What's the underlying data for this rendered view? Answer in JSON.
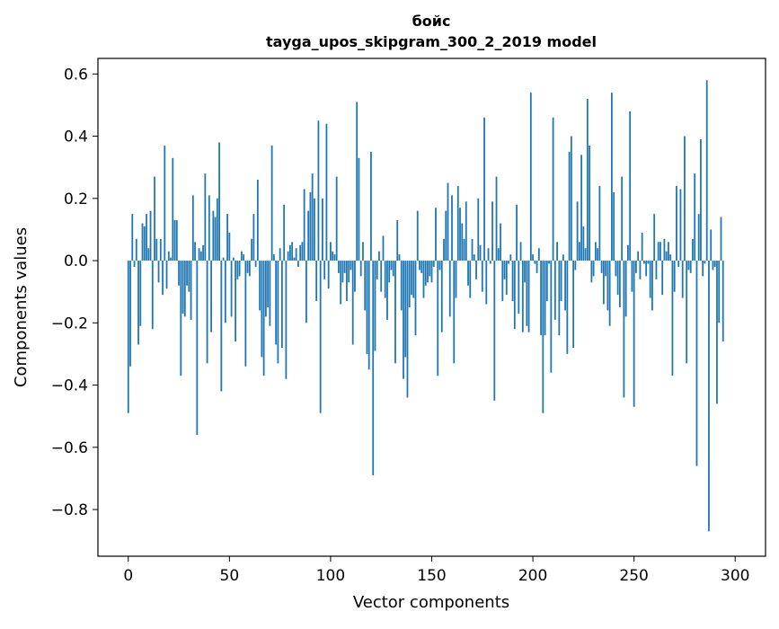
{
  "chart_data": {
    "type": "bar",
    "title": "бойс",
    "subtitle": "tayga_upos_skipgram_300_2_2019 model",
    "xlabel": "Vector components",
    "ylabel": "Components values",
    "xlim": [
      -15,
      315
    ],
    "ylim": [
      -0.95,
      0.65
    ],
    "x_ticks": [
      0,
      50,
      100,
      150,
      200,
      250,
      300
    ],
    "x_tick_labels": [
      "0",
      "50",
      "100",
      "150",
      "200",
      "250",
      "300"
    ],
    "y_ticks": [
      0.6,
      0.4,
      0.2,
      0.0,
      -0.2,
      -0.4,
      -0.6,
      -0.8
    ],
    "y_tick_labels": [
      "0.6",
      "0.4",
      "0.2",
      "0.0",
      "−0.2",
      "−0.4",
      "−0.6",
      "−0.8"
    ],
    "grid": false,
    "bar_color": "#1f77b4",
    "x_start": 0,
    "values": [
      -0.49,
      -0.34,
      0.15,
      -0.02,
      0.07,
      -0.27,
      -0.21,
      0.12,
      0.11,
      0.15,
      0.04,
      0.16,
      -0.22,
      0.27,
      0.07,
      -0.07,
      0.07,
      -0.11,
      0.37,
      -0.09,
      0.03,
      0.01,
      0.33,
      0.13,
      0.13,
      -0.08,
      -0.37,
      -0.17,
      -0.18,
      -0.08,
      -0.1,
      -0.19,
      0.21,
      0.06,
      -0.56,
      0.04,
      0.03,
      0.05,
      0.28,
      -0.33,
      0.21,
      -0.23,
      0.16,
      0.14,
      0.2,
      0.38,
      -0.42,
      0.01,
      -0.2,
      0.15,
      0.09,
      -0.18,
      0.01,
      -0.26,
      -0.06,
      -0.05,
      0.03,
      0.02,
      -0.34,
      -0.04,
      -0.05,
      0.07,
      0.15,
      -0.02,
      0.26,
      -0.16,
      -0.31,
      -0.37,
      -0.18,
      -0.15,
      -0.21,
      0.37,
      0.02,
      -0.27,
      -0.33,
      0.04,
      -0.28,
      0.18,
      -0.38,
      0.03,
      0.05,
      0.06,
      0.01,
      0.04,
      -0.02,
      0.05,
      0.06,
      0.23,
      -0.2,
      0.16,
      0.22,
      0.28,
      0.2,
      -0.13,
      0.45,
      -0.49,
      0.2,
      -0.06,
      0.44,
      -0.09,
      0.06,
      0.03,
      0.02,
      0.27,
      -0.04,
      -0.14,
      -0.07,
      -0.04,
      -0.13,
      -0.07,
      -0.03,
      -0.27,
      -0.1,
      0.51,
      0.33,
      -0.05,
      0.06,
      -0.16,
      -0.3,
      -0.35,
      0.35,
      -0.69,
      -0.29,
      -0.06,
      0.03,
      -0.1,
      0.08,
      -0.12,
      -0.19,
      -0.07,
      -0.03,
      -0.05,
      -0.33,
      0.13,
      0.02,
      -0.16,
      -0.38,
      -0.31,
      -0.44,
      -0.15,
      -0.11,
      -0.12,
      -0.24,
      0.16,
      -0.03,
      -0.04,
      -0.12,
      -0.08,
      -0.07,
      -0.05,
      -0.07,
      -0.02,
      0.17,
      -0.37,
      -0.03,
      -0.23,
      0.07,
      0.16,
      0.25,
      -0.18,
      0.21,
      -0.33,
      -0.12,
      0.24,
      0.17,
      0.12,
      0.07,
      0.19,
      -0.08,
      -0.12,
      0.07,
      0.02,
      -0.06,
      0.2,
      0.05,
      -0.1,
      0.46,
      -0.14,
      0.04,
      -0.01,
      0.19,
      -0.45,
      0.27,
      0.04,
      0.12,
      -0.13,
      -0.06,
      -0.11,
      -0.01,
      0.02,
      -0.13,
      -0.22,
      0.18,
      -0.17,
      0.06,
      -0.23,
      -0.07,
      -0.21,
      -0.23,
      0.54,
      0.02,
      -0.01,
      -0.04,
      0.04,
      -0.24,
      -0.49,
      -0.24,
      -0.13,
      -0.01,
      -0.36,
      0.46,
      -0.19,
      0.06,
      -0.24,
      -0.13,
      0.02,
      -0.16,
      -0.3,
      0.35,
      0.4,
      -0.28,
      -0.03,
      0.19,
      0.06,
      0.34,
      0.11,
      0.04,
      0.52,
      0.37,
      -0.07,
      -0.05,
      0.06,
      0.04,
      0.24,
      -0.04,
      -0.14,
      -0.05,
      -0.16,
      -0.21,
      0.54,
      0.22,
      -0.05,
      -0.11,
      -0.15,
      0.27,
      -0.44,
      -0.18,
      0.05,
      0.48,
      -0.1,
      -0.47,
      -0.04,
      0.03,
      -0.06,
      0.09,
      -0.01,
      -0.05,
      -0.01,
      -0.12,
      -0.16,
      0.15,
      -0.06,
      0.06,
      0.06,
      -0.11,
      0.07,
      0.03,
      0.06,
      0.02,
      -0.37,
      -0.1,
      0.24,
      -0.02,
      0.23,
      -0.12,
      0.4,
      -0.33,
      -0.03,
      -0.04,
      0.07,
      0.28,
      -0.66,
      0.15,
      0.39,
      -0.05,
      -0.01,
      0.58,
      -0.87,
      0.1,
      -0.03,
      -0.02,
      -0.46,
      -0.2,
      0.14,
      -0.26
    ]
  }
}
